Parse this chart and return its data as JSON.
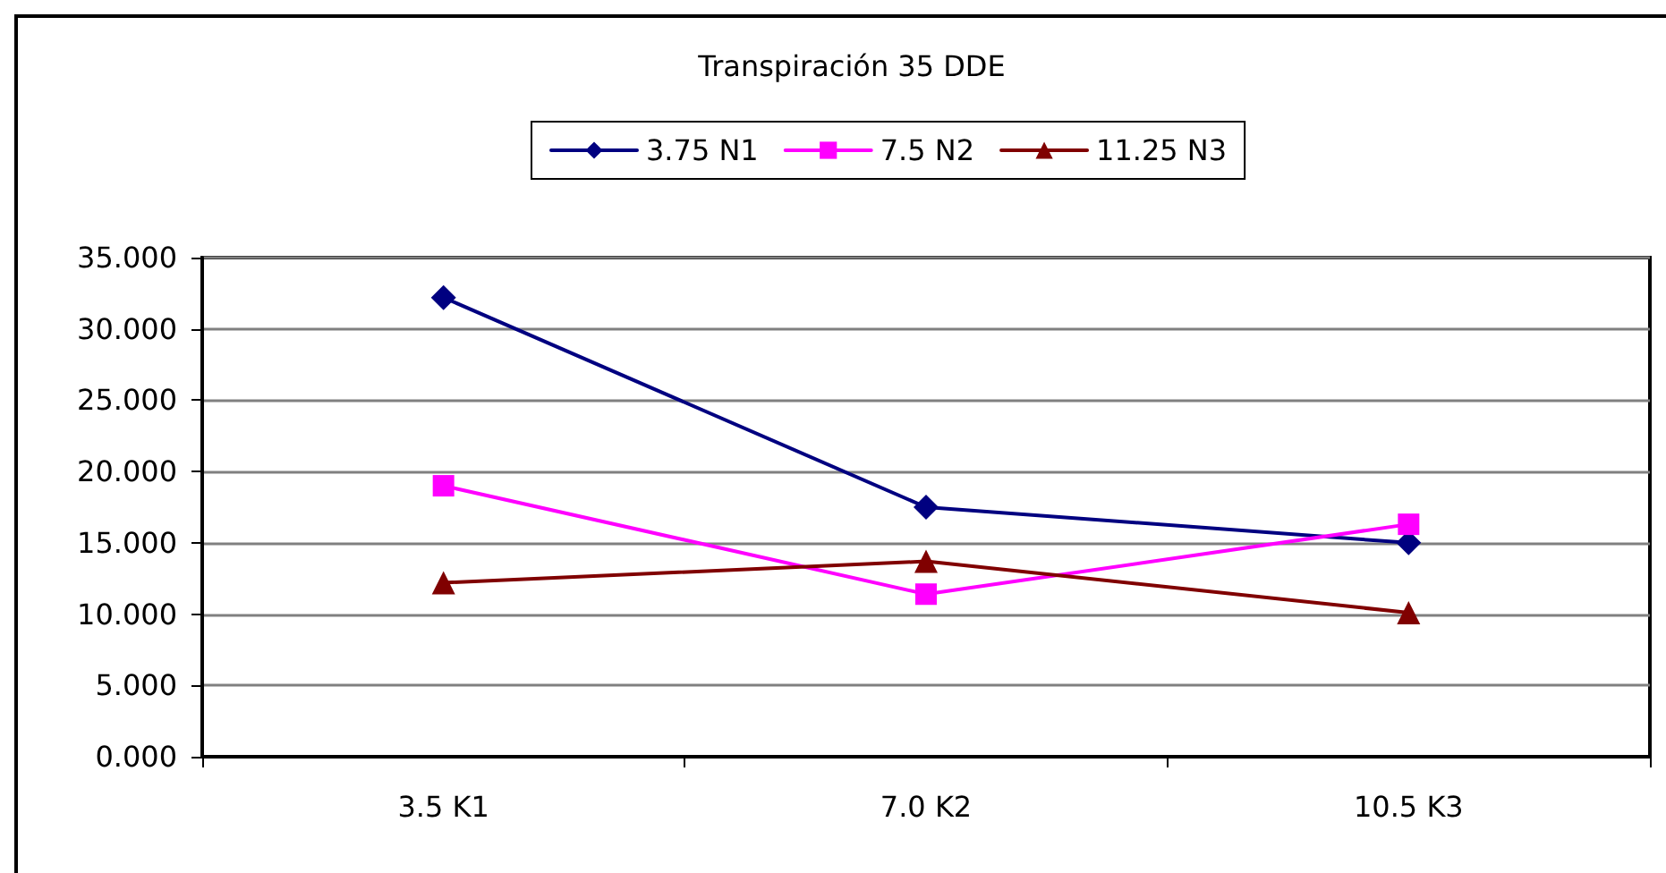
{
  "chart_data": {
    "type": "line",
    "title": "Transpiración 35 DDE",
    "categories": [
      "3.5 K1",
      "7.0 K2",
      "10.5 K3"
    ],
    "series": [
      {
        "name": "3.75 N1",
        "color": "#000080",
        "marker": "diamond",
        "values": [
          32.2,
          17.5,
          15.0
        ]
      },
      {
        "name": "7.5 N2",
        "color": "#ff00ff",
        "marker": "square",
        "values": [
          19.0,
          11.4,
          16.3
        ]
      },
      {
        "name": "11.25 N3",
        "color": "#800000",
        "marker": "triangle",
        "values": [
          12.2,
          13.7,
          10.1
        ]
      }
    ],
    "ylim": [
      0,
      35
    ],
    "yticks": [
      {
        "value": 0,
        "label": "0.000"
      },
      {
        "value": 5,
        "label": "5.000"
      },
      {
        "value": 10,
        "label": "10.000"
      },
      {
        "value": 15,
        "label": "15.000"
      },
      {
        "value": 20,
        "label": "20.000"
      },
      {
        "value": 25,
        "label": "25.000"
      },
      {
        "value": 30,
        "label": "30.000"
      },
      {
        "value": 35,
        "label": "35.000"
      }
    ],
    "grid": "y",
    "legend": "top",
    "line_style": "solid"
  }
}
